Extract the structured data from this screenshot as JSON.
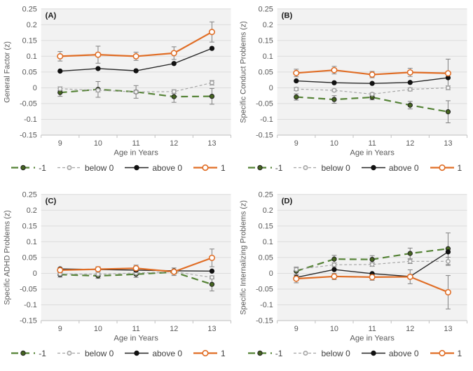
{
  "figure": {
    "x_label": "Age in Years",
    "x_categories": [
      "9",
      "10",
      "11",
      "12",
      "13"
    ],
    "y_ticks": [
      "0.25",
      "0.2",
      "0.15",
      "0.1",
      "0.05",
      "0",
      "-0.05",
      "-0.1",
      "-0.15"
    ],
    "y_min": -0.15,
    "y_max": 0.25,
    "colors": {
      "plot_background": "#f2f2f2",
      "gridline": "#dcdcdc",
      "axis": "#bfbfbf",
      "tick_text": "#595959",
      "error_bar": "#7f7f7f",
      "panel_letter": "#1a1a1a",
      "green": "#548235",
      "gray": "#a6a6a6",
      "black": "#262626",
      "orange": "#e06d25"
    },
    "styles": {
      "-1": {
        "color": "#548235",
        "dash": "10,6",
        "width": 2.2,
        "marker": "filled",
        "marker_fill": "#44631f",
        "marker_stroke": "#222222",
        "r": 3.2
      },
      "below 0": {
        "color": "#a6a6a6",
        "dash": "4,3",
        "width": 1.2,
        "marker": "open",
        "marker_fill": "#f7f7f7",
        "marker_stroke": "#a6a6a6",
        "r": 2.7
      },
      "above 0": {
        "color": "#262626",
        "dash": "",
        "width": 1.4,
        "marker": "filled",
        "marker_fill": "#111111",
        "marker_stroke": "#111111",
        "r": 3.2
      },
      "1": {
        "color": "#e06d25",
        "dash": "",
        "width": 2.2,
        "marker": "open",
        "marker_fill": "#ffffff",
        "marker_stroke": "#e06d25",
        "r": 3.8
      }
    },
    "legend_items": [
      "-1",
      "below 0",
      "above 0",
      "1"
    ]
  },
  "chart_data": [
    {
      "type": "line",
      "panel_label": "(A)",
      "ylabel": "General Factor (z)",
      "xlabel": "Age in Years",
      "x": [
        9,
        10,
        11,
        12,
        13
      ],
      "ylim": [
        -0.15,
        0.25
      ],
      "series": [
        {
          "name": "-1",
          "values": [
            -0.015,
            -0.005,
            -0.013,
            -0.028,
            -0.027
          ],
          "errors": [
            0.012,
            0.025,
            0.02,
            0.018,
            0.025
          ]
        },
        {
          "name": "below 0",
          "values": [
            -0.003,
            -0.008,
            -0.013,
            -0.012,
            0.016
          ],
          "errors": [
            0.006,
            0.005,
            0.005,
            0.006,
            0.007
          ]
        },
        {
          "name": "above 0",
          "values": [
            0.053,
            0.061,
            0.054,
            0.077,
            0.125
          ],
          "errors": [
            0,
            0,
            0,
            0,
            0
          ]
        },
        {
          "name": "1",
          "values": [
            0.1,
            0.105,
            0.1,
            0.11,
            0.177
          ],
          "errors": [
            0.015,
            0.027,
            0.013,
            0.02,
            0.032
          ]
        }
      ]
    },
    {
      "type": "line",
      "panel_label": "(B)",
      "ylabel": "Specific Conduct Problems (z)",
      "xlabel": "Age in Years",
      "x": [
        9,
        10,
        11,
        12,
        13
      ],
      "ylim": [
        -0.15,
        0.25
      ],
      "series": [
        {
          "name": "-1",
          "values": [
            -0.029,
            -0.037,
            -0.03,
            -0.055,
            -0.076
          ],
          "errors": [
            0.01,
            0.012,
            0.008,
            0.012,
            0.035
          ]
        },
        {
          "name": "below 0",
          "values": [
            -0.004,
            -0.008,
            -0.02,
            -0.005,
            0.0
          ],
          "errors": [
            0.005,
            0.004,
            0.004,
            0.005,
            0.006
          ]
        },
        {
          "name": "above 0",
          "values": [
            0.022,
            0.016,
            0.014,
            0.017,
            0.032
          ],
          "errors": [
            0,
            0,
            0,
            0,
            0
          ]
        },
        {
          "name": "1",
          "values": [
            0.047,
            0.056,
            0.042,
            0.049,
            0.046
          ],
          "errors": [
            0.012,
            0.012,
            0.01,
            0.013,
            0.045
          ]
        }
      ]
    },
    {
      "type": "line",
      "panel_label": "(C)",
      "ylabel": "Specific ADHD Problems (z)",
      "xlabel": "Age in Years",
      "x": [
        9,
        10,
        11,
        12,
        13
      ],
      "ylim": [
        -0.15,
        0.25
      ],
      "series": [
        {
          "name": "-1",
          "values": [
            -0.004,
            -0.008,
            -0.003,
            0.004,
            -0.035
          ],
          "errors": [
            0.008,
            0.008,
            0.01,
            0.007,
            0.021
          ]
        },
        {
          "name": "below 0",
          "values": [
            -0.002,
            -0.003,
            0.001,
            0.005,
            -0.013
          ],
          "errors": [
            0.004,
            0.004,
            0.004,
            0.004,
            0.005
          ]
        },
        {
          "name": "above 0",
          "values": [
            0.014,
            0.012,
            0.01,
            0.008,
            0.007
          ],
          "errors": [
            0,
            0,
            0,
            0,
            0
          ]
        },
        {
          "name": "1",
          "values": [
            0.01,
            0.013,
            0.016,
            0.005,
            0.049
          ],
          "errors": [
            0.008,
            0.008,
            0.01,
            0.012,
            0.028
          ]
        }
      ]
    },
    {
      "type": "line",
      "panel_label": "(D)",
      "ylabel": "Specific Internalizing Problems (z)",
      "xlabel": "Age in Years",
      "x": [
        9,
        10,
        11,
        12,
        13
      ],
      "ylim": [
        -0.15,
        0.25
      ],
      "series": [
        {
          "name": "-1",
          "values": [
            0.007,
            0.045,
            0.044,
            0.063,
            0.078
          ],
          "errors": [
            0.013,
            0.012,
            0.012,
            0.017,
            0.05
          ]
        },
        {
          "name": "below 0",
          "values": [
            0.012,
            0.027,
            0.028,
            0.038,
            0.038
          ],
          "errors": [
            0.005,
            0.006,
            0.006,
            0.007,
            0.013
          ]
        },
        {
          "name": "above 0",
          "values": [
            -0.013,
            0.012,
            -0.001,
            -0.01,
            0.068
          ],
          "errors": [
            0,
            0,
            0,
            0,
            0
          ]
        },
        {
          "name": "1",
          "values": [
            -0.017,
            -0.01,
            -0.012,
            -0.011,
            -0.06
          ],
          "errors": [
            0.013,
            0.01,
            0.01,
            0.022,
            0.053
          ]
        }
      ]
    }
  ]
}
